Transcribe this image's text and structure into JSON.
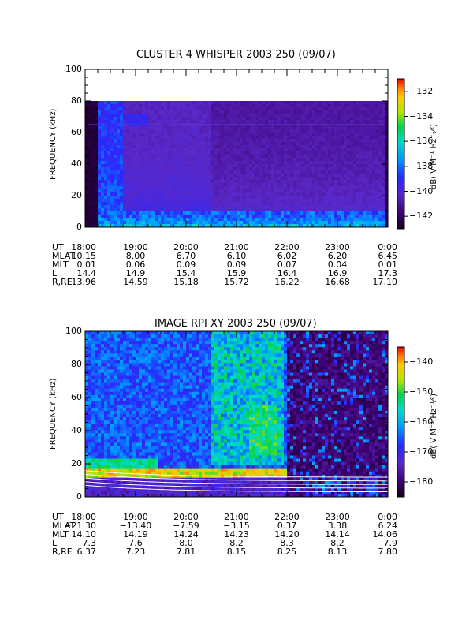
{
  "panels": [
    {
      "title": "CLUSTER 4 WHISPER 2003 250 (09/07)",
      "ylabel": "FREQUENCY (kHz)",
      "yticks": [
        "0",
        "20",
        "40",
        "60",
        "80",
        "100"
      ],
      "colorbar_ticks": [
        "-132",
        "-134",
        "-136",
        "-138",
        "-140",
        "-142"
      ],
      "colorbar_label": "dB( V M⁻¹ Hz⁻¹⁄²)",
      "ephemeris": [
        {
          "label": "UT",
          "values": [
            "18:00",
            "19:00",
            "20:00",
            "21:00",
            "22:00",
            "23:00",
            "0:00"
          ]
        },
        {
          "label": "MLAT",
          "values": [
            "10.15",
            "8.00",
            "6.70",
            "6.10",
            "6.02",
            "6.20",
            "6.45"
          ]
        },
        {
          "label": "MLT",
          "values": [
            "0.01",
            "0.06",
            "0.09",
            "0.09",
            "0.07",
            "0.04",
            "0.01"
          ]
        },
        {
          "label": "L",
          "values": [
            "14.4",
            "14.9",
            "15.4",
            "15.9",
            "16.4",
            "16.9",
            "17.3"
          ]
        },
        {
          "label": "R,RE",
          "values": [
            "13.96",
            "14.59",
            "15.18",
            "15.72",
            "16.22",
            "16.68",
            "17.10"
          ]
        }
      ]
    },
    {
      "title": "IMAGE RPI XY 2003 250 (09/07)",
      "ylabel": "FREQUENCY (kHz)",
      "yticks": [
        "0",
        "20",
        "40",
        "60",
        "80",
        "100"
      ],
      "colorbar_ticks": [
        "-140",
        "-150",
        "-160",
        "-170",
        "-180"
      ],
      "colorbar_label": "dB( V M⁻¹ Hz⁻¹⁄²)",
      "ephemeris": [
        {
          "label": "UT",
          "values": [
            "18:00",
            "19:00",
            "20:00",
            "21:00",
            "22:00",
            "23:00",
            "0:00"
          ]
        },
        {
          "label": "MLAT",
          "values": [
            "−21.30",
            "−13.40",
            "−7.59",
            "−3.15",
            "0.37",
            "3.38",
            "6.24"
          ]
        },
        {
          "label": "MLT",
          "values": [
            "14.10",
            "14.19",
            "14.24",
            "14.23",
            "14.20",
            "14.14",
            "14.06"
          ]
        },
        {
          "label": "L",
          "values": [
            "7.3",
            "7.6",
            "8.0",
            "8.2",
            "8.3",
            "8.2",
            "7.9"
          ]
        },
        {
          "label": "R,RE",
          "values": [
            "6.37",
            "7.23",
            "7.81",
            "8.15",
            "8.25",
            "8.13",
            "7.80"
          ]
        }
      ]
    }
  ],
  "chart_data": [
    {
      "type": "heatmap",
      "title": "CLUSTER 4 WHISPER 2003 250 (09/07)",
      "ylabel": "FREQUENCY (kHz)",
      "x_ticks": [
        "18:00",
        "19:00",
        "20:00",
        "21:00",
        "22:00",
        "23:00",
        "0:00"
      ],
      "ylim": [
        0,
        100
      ],
      "data_frequency_range_khz": [
        0,
        80
      ],
      "colorbar_range_db": [
        -143,
        -131
      ],
      "colorscale": "rainbow (purple low, red high)",
      "features": [
        {
          "ut": "18:15-18:45",
          "freq_khz": [
            0,
            80
          ],
          "db": -140
        },
        {
          "ut": "18:15-0:00",
          "freq_khz": [
            0,
            10
          ],
          "db": -139
        },
        {
          "ut": "18:00-0:00",
          "freq_khz": [
            10,
            80
          ],
          "db": -142.5
        }
      ]
    },
    {
      "type": "heatmap",
      "title": "IMAGE RPI XY 2003 250 (09/07)",
      "ylabel": "FREQUENCY (kHz)",
      "x_ticks": [
        "18:00",
        "19:00",
        "20:00",
        "21:00",
        "22:00",
        "23:00",
        "0:00"
      ],
      "ylim": [
        0,
        100
      ],
      "colorbar_range_db": [
        -185,
        -135
      ],
      "colorscale": "rainbow (purple low, red high)",
      "features": [
        {
          "ut": "18:00-0:00",
          "freq_khz": [
            12,
            18
          ],
          "db": -148,
          "note": "intense emission band"
        },
        {
          "ut": "20:30-21:50",
          "freq_khz": [
            20,
            100
          ],
          "db": -160
        },
        {
          "ut": "22:00-0:00",
          "freq_khz": [
            0,
            100
          ],
          "db": -182
        },
        {
          "ut": "18:00-19:30",
          "freq_khz": [
            0,
            20
          ],
          "db": -178
        }
      ]
    }
  ]
}
